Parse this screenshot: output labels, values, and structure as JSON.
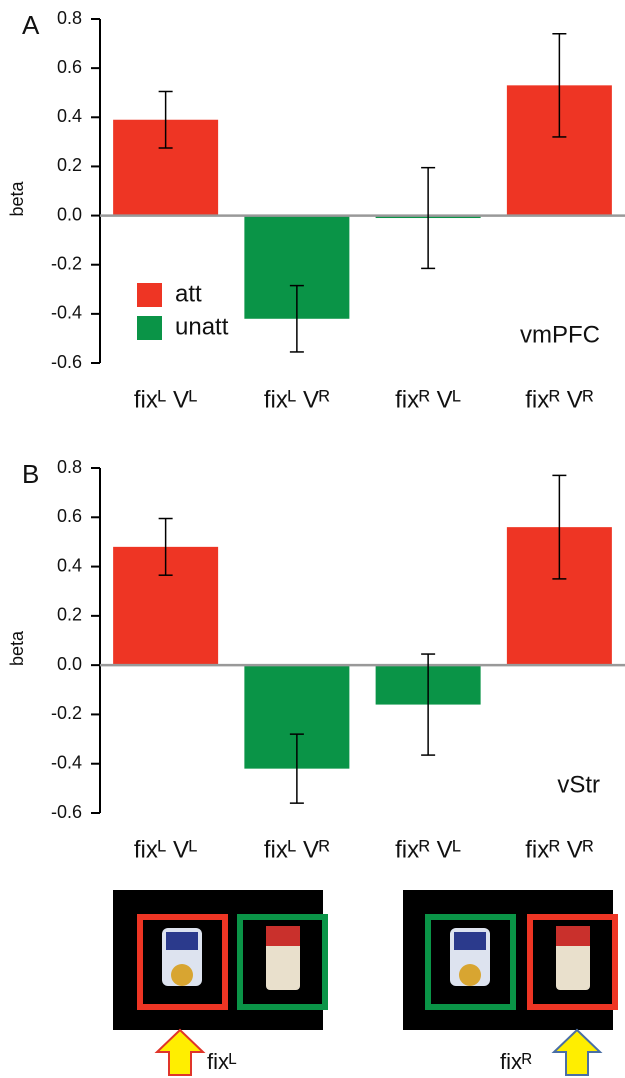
{
  "chart_data": [
    {
      "type": "bar",
      "panel": "A",
      "annotation": "vmPFC",
      "ylabel": "beta",
      "categories": [
        "fixᴸ Vᴸ",
        "fixᴸ Vᴿ",
        "fixᴿ Vᴸ",
        "fixᴿ Vᴿ"
      ],
      "series": [
        {
          "name": "att",
          "color": "#ee3524",
          "values": [
            0.39,
            null,
            null,
            0.53
          ],
          "errors": [
            0.115,
            null,
            null,
            0.21
          ]
        },
        {
          "name": "unatt",
          "color": "#0a9447",
          "values": [
            null,
            -0.42,
            -0.01,
            null
          ],
          "errors": [
            null,
            0.135,
            0.205,
            null
          ]
        }
      ],
      "ylim": [
        -0.6,
        0.8
      ],
      "yticks": [
        -0.6,
        -0.4,
        -0.2,
        {
          "value": 0,
          "label": "0.0"
        },
        0.2,
        0.4,
        0.6,
        0.8
      ],
      "legend": "lower-left"
    },
    {
      "type": "bar",
      "panel": "B",
      "annotation": "vStr",
      "ylabel": "beta",
      "categories": [
        "fixᴸ Vᴸ",
        "fixᴸ Vᴿ",
        "fixᴿ Vᴸ",
        "fixᴿ Vᴿ"
      ],
      "series": [
        {
          "color": "#ee3524",
          "values": [
            0.48,
            null,
            null,
            0.56
          ],
          "errors": [
            0.115,
            null,
            null,
            0.21
          ]
        },
        {
          "color": "#0a9447",
          "values": [
            null,
            -0.42,
            -0.16,
            null
          ],
          "errors": [
            null,
            0.14,
            0.205,
            null
          ]
        }
      ],
      "ylim": [
        -0.6,
        0.8
      ],
      "yticks": [
        -0.6,
        -0.4,
        -0.2,
        {
          "value": 0,
          "label": "0.0"
        },
        0.2,
        0.4,
        0.6,
        0.8
      ]
    }
  ],
  "stimuli": {
    "labels": [
      "fixᴸ",
      "fixᴿ"
    ]
  }
}
